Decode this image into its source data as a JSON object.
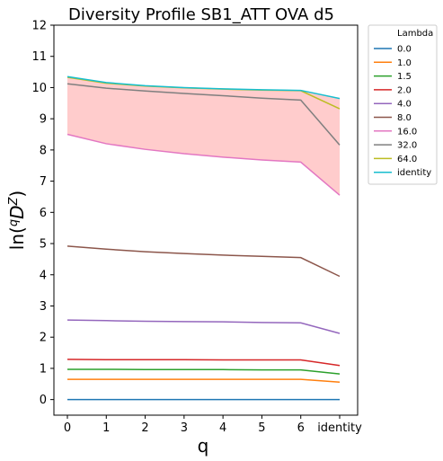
{
  "chart_data": {
    "type": "line",
    "title": "Diversity Profile SB1_ATT OVA d5",
    "xlabel": "q",
    "ylabel": "ln(ᵠDᶻ)",
    "x_ticks": [
      "0",
      "1",
      "2",
      "3",
      "4",
      "5",
      "6",
      "identity"
    ],
    "y_ticks": [
      "0",
      "1",
      "2",
      "3",
      "4",
      "5",
      "6",
      "7",
      "8",
      "9",
      "10",
      "11",
      "12"
    ],
    "ylim": [
      -0.5,
      12
    ],
    "grid": false,
    "legend_placement": "outside-top-right",
    "legend_title": "Lambda",
    "shaded_band": {
      "lower_series": "16.0",
      "upper_series": "identity",
      "color": "#ffcccc"
    },
    "series": [
      {
        "name": "0.0",
        "color": "#1f77b4",
        "values": [
          0,
          0,
          0,
          0,
          0,
          0,
          0,
          0
        ]
      },
      {
        "name": "1.0",
        "color": "#ff7f0e",
        "values": [
          0.65,
          0.65,
          0.65,
          0.65,
          0.65,
          0.65,
          0.65,
          0.56
        ]
      },
      {
        "name": "1.5",
        "color": "#2ca02c",
        "values": [
          0.97,
          0.97,
          0.96,
          0.96,
          0.96,
          0.95,
          0.95,
          0.82
        ]
      },
      {
        "name": "2.0",
        "color": "#d62728",
        "values": [
          1.29,
          1.28,
          1.28,
          1.28,
          1.27,
          1.27,
          1.27,
          1.09
        ]
      },
      {
        "name": "4.0",
        "color": "#9467bd",
        "values": [
          2.55,
          2.53,
          2.51,
          2.5,
          2.49,
          2.47,
          2.46,
          2.12
        ]
      },
      {
        "name": "8.0",
        "color": "#8c564b",
        "values": [
          4.92,
          4.82,
          4.74,
          4.68,
          4.63,
          4.59,
          4.55,
          3.95
        ]
      },
      {
        "name": "16.0",
        "color": "#e377c2",
        "values": [
          8.5,
          8.2,
          8.02,
          7.88,
          7.77,
          7.68,
          7.61,
          6.55
        ]
      },
      {
        "name": "32.0",
        "color": "#7f7f7f",
        "values": [
          10.12,
          9.98,
          9.89,
          9.81,
          9.74,
          9.66,
          9.6,
          8.16
        ]
      },
      {
        "name": "64.0",
        "color": "#bcbd22",
        "values": [
          10.33,
          10.14,
          10.05,
          9.99,
          9.95,
          9.92,
          9.9,
          9.32
        ]
      },
      {
        "name": "identity",
        "color": "#17becf",
        "values": [
          10.35,
          10.16,
          10.06,
          10.0,
          9.96,
          9.93,
          9.91,
          9.65
        ]
      }
    ]
  }
}
